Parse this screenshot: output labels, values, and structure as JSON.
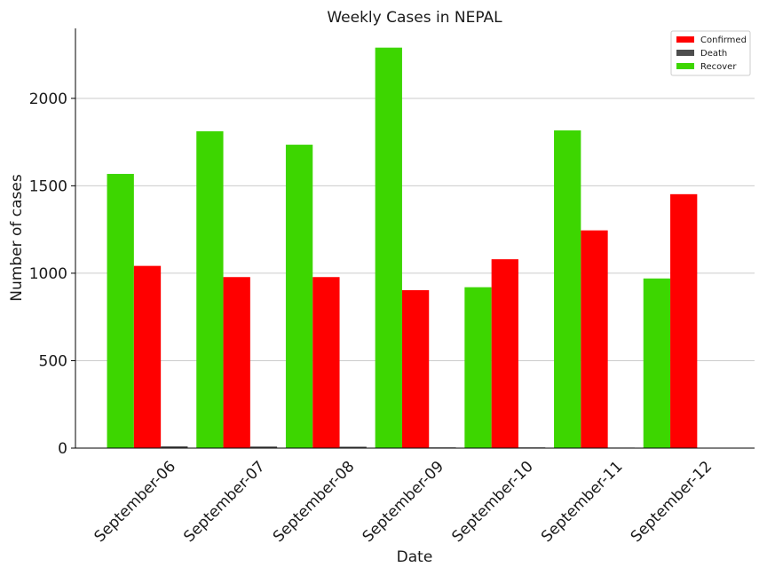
{
  "chart_data": {
    "type": "bar",
    "title": "Weekly Cases in NEPAL",
    "xlabel": "Date",
    "ylabel": "Number of cases",
    "categories": [
      "September-06",
      "September-07",
      "September-08",
      "September-09",
      "September-10",
      "September-11",
      "September-12"
    ],
    "series": [
      {
        "name": "Recover",
        "color": "#3dd600",
        "values": [
          1568,
          1812,
          1735,
          2290,
          920,
          1817,
          970
        ]
      },
      {
        "name": "Confirmed",
        "color": "#ff0000",
        "values": [
          1042,
          978,
          978,
          903,
          1080,
          1245,
          1452
        ]
      },
      {
        "name": "Death",
        "color": "#4d4d4d",
        "values": [
          10,
          9,
          8,
          4,
          4,
          3,
          2
        ]
      }
    ],
    "legend_order": [
      "Confirmed",
      "Death",
      "Recover"
    ],
    "legend_position": "top-right",
    "ylim": [
      0,
      2400
    ],
    "yticks": [
      0,
      500,
      1000,
      1500,
      2000
    ],
    "grid": "horizontal"
  }
}
